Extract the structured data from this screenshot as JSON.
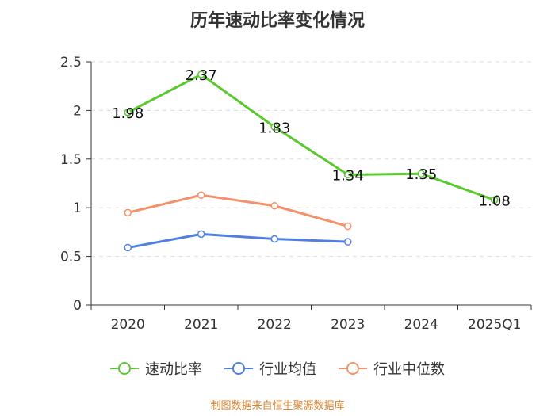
{
  "chart_data": {
    "type": "line",
    "title": "历年速动比率变化情况",
    "categories": [
      "2020",
      "2021",
      "2022",
      "2023",
      "2024",
      "2025Q1"
    ],
    "y_ticks": [
      "0",
      "0.5",
      "1",
      "1.5",
      "2",
      "2.5"
    ],
    "ylim": [
      0,
      2.5
    ],
    "grid": true,
    "legend_position": "bottom",
    "series": [
      {
        "name": "速动比率",
        "color": "#5ac92d",
        "values": [
          1.98,
          2.37,
          1.83,
          1.34,
          1.35,
          1.08
        ],
        "labels": [
          "1.98",
          "2.37",
          "1.83",
          "1.34",
          "1.35",
          "1.08"
        ],
        "show_labels": true
      },
      {
        "name": "行业均值",
        "color": "#4f7fe0",
        "values": [
          0.59,
          0.73,
          0.68,
          0.65,
          null,
          null
        ],
        "show_labels": false
      },
      {
        "name": "行业中位数",
        "color": "#f4916a",
        "values": [
          0.95,
          1.13,
          1.02,
          0.81,
          null,
          null
        ],
        "show_labels": false
      }
    ]
  },
  "source": "制图数据来自恒生聚源数据库"
}
